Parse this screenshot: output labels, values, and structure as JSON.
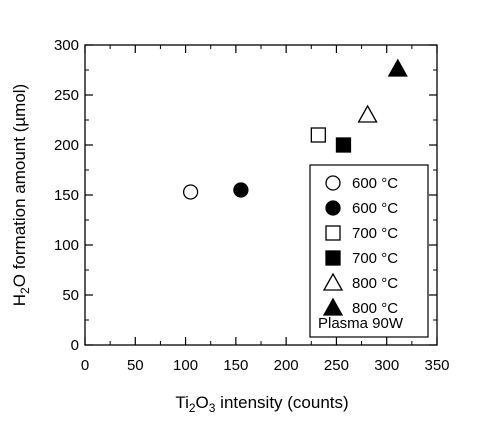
{
  "chart_data": {
    "type": "scatter",
    "xlabel": {
      "prefix": "Ti",
      "sub1": "2",
      "mid": "O",
      "sub2": "3",
      "suffix": " intensity (counts)"
    },
    "ylabel": {
      "prefix": "H",
      "sub": "2",
      "suffix": "O formation amount (µmol)"
    },
    "xlim": [
      0,
      350
    ],
    "ylim": [
      0,
      300
    ],
    "xticks": [
      0,
      50,
      100,
      150,
      200,
      250,
      300,
      350
    ],
    "yticks": [
      0,
      50,
      100,
      150,
      200,
      250,
      300
    ],
    "grid": false,
    "legend_position": "bottom-right",
    "legend_note": "Plasma 90W",
    "series": [
      {
        "name": "600 °C",
        "marker": "circle-open",
        "x": [
          105
        ],
        "y": [
          153
        ]
      },
      {
        "name": "600 °C",
        "marker": "circle-filled",
        "x": [
          155
        ],
        "y": [
          155
        ]
      },
      {
        "name": "700 °C",
        "marker": "square-open",
        "x": [
          232
        ],
        "y": [
          210
        ]
      },
      {
        "name": "700 °C",
        "marker": "square-filled",
        "x": [
          257
        ],
        "y": [
          200
        ]
      },
      {
        "name": "800 °C",
        "marker": "triangle-open",
        "x": [
          281
        ],
        "y": [
          230
        ]
      },
      {
        "name": "800 °C",
        "marker": "triangle-filled",
        "x": [
          311
        ],
        "y": [
          276
        ]
      }
    ]
  }
}
